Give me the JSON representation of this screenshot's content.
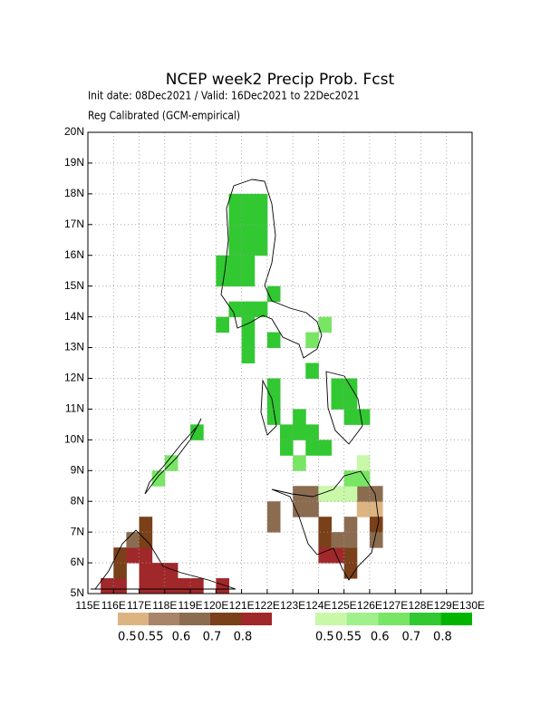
{
  "map": {
    "title": "NCEP week2 Precip Prob. Fcst",
    "subtitle": "Init date: 08Dec2021 / Valid: 16Dec2021 to 22Dec2021",
    "note": "Reg Calibrated (GCM-empirical)",
    "xlim": [
      115,
      130
    ],
    "ylim": [
      5,
      20
    ],
    "xticks": [
      {
        "value": 115,
        "label": "115E"
      },
      {
        "value": 116,
        "label": "116E"
      },
      {
        "value": 117,
        "label": "117E"
      },
      {
        "value": 118,
        "label": "118E"
      },
      {
        "value": 119,
        "label": "119E"
      },
      {
        "value": 120,
        "label": "120E"
      },
      {
        "value": 121,
        "label": "121E"
      },
      {
        "value": 122,
        "label": "122E"
      },
      {
        "value": 123,
        "label": "123E"
      },
      {
        "value": 124,
        "label": "124E"
      },
      {
        "value": 125,
        "label": "125E"
      },
      {
        "value": 126,
        "label": "126E"
      },
      {
        "value": 127,
        "label": "127E"
      },
      {
        "value": 128,
        "label": "128E"
      },
      {
        "value": 129,
        "label": "129E"
      },
      {
        "value": 130,
        "label": "130E"
      }
    ],
    "yticks": [
      {
        "value": 5,
        "label": "5N"
      },
      {
        "value": 6,
        "label": "6N"
      },
      {
        "value": 7,
        "label": "7N"
      },
      {
        "value": 8,
        "label": "8N"
      },
      {
        "value": 9,
        "label": "9N"
      },
      {
        "value": 10,
        "label": "10N"
      },
      {
        "value": 11,
        "label": "11N"
      },
      {
        "value": 12,
        "label": "12N"
      },
      {
        "value": 13,
        "label": "13N"
      },
      {
        "value": 14,
        "label": "14N"
      },
      {
        "value": 15,
        "label": "15N"
      },
      {
        "value": 16,
        "label": "16N"
      },
      {
        "value": 17,
        "label": "17N"
      },
      {
        "value": 18,
        "label": "18N"
      },
      {
        "value": 19,
        "label": "19N"
      },
      {
        "value": 20,
        "label": "20N"
      }
    ],
    "grid": true,
    "dry_legend": {
      "labels": [
        0.5,
        0.55,
        0.6,
        0.7,
        0.8
      ],
      "colors": [
        "#dcb482",
        "#a88468",
        "#8c6c50",
        "#7a4019",
        "#a0282a"
      ]
    },
    "wet_legend": {
      "labels": [
        0.5,
        0.55,
        0.6,
        0.7,
        0.8
      ],
      "colors": [
        "#c8f8a8",
        "#a0f08c",
        "#78e664",
        "#32c832",
        "#00b400"
      ]
    },
    "dry_cells": [
      [
        122,
        7,
        2
      ],
      [
        122,
        7.5,
        2
      ],
      [
        123,
        7.5,
        2
      ],
      [
        123,
        8,
        2
      ],
      [
        123.5,
        7.5,
        2
      ],
      [
        123.5,
        8,
        2
      ],
      [
        124,
        7,
        3
      ],
      [
        124,
        6.5,
        3
      ],
      [
        124,
        6,
        4
      ],
      [
        124.5,
        6,
        4
      ],
      [
        124.5,
        6.5,
        2
      ],
      [
        125,
        5.5,
        3
      ],
      [
        125,
        6,
        3
      ],
      [
        125,
        6.5,
        2
      ],
      [
        125,
        7,
        2
      ],
      [
        125.5,
        7.5,
        0
      ],
      [
        126,
        7.5,
        0
      ],
      [
        125.5,
        8,
        2
      ],
      [
        126,
        8,
        2
      ],
      [
        126,
        6.5,
        2
      ],
      [
        126,
        7,
        3
      ],
      [
        115.5,
        5,
        4
      ],
      [
        116,
        5,
        4
      ],
      [
        116,
        5.5,
        3
      ],
      [
        116,
        6,
        3
      ],
      [
        116.5,
        6,
        4
      ],
      [
        116.5,
        6.5,
        2
      ],
      [
        117,
        5,
        4
      ],
      [
        117,
        5.5,
        4
      ],
      [
        117,
        6,
        4
      ],
      [
        117,
        6.5,
        3
      ],
      [
        117,
        7,
        3
      ],
      [
        117.5,
        5,
        4
      ],
      [
        117.5,
        5.5,
        4
      ],
      [
        118,
        5,
        4
      ],
      [
        118,
        5.5,
        4
      ],
      [
        118.5,
        5,
        4
      ],
      [
        119,
        5,
        4
      ],
      [
        120,
        5,
        4
      ]
    ],
    "wet_cells": [
      [
        120.5,
        16,
        3
      ],
      [
        121,
        16,
        3
      ],
      [
        121.5,
        16,
        3
      ],
      [
        120.5,
        16.5,
        3
      ],
      [
        121,
        16.5,
        3
      ],
      [
        121.5,
        16.5,
        3
      ],
      [
        120.5,
        17,
        3
      ],
      [
        121,
        17,
        3
      ],
      [
        121.5,
        17,
        3
      ],
      [
        120.5,
        17.5,
        3
      ],
      [
        121,
        17.5,
        3
      ],
      [
        121.5,
        17.5,
        3
      ],
      [
        120,
        15,
        3
      ],
      [
        120.5,
        15,
        3
      ],
      [
        121,
        15,
        3
      ],
      [
        120,
        15.5,
        3
      ],
      [
        120.5,
        15.5,
        3
      ],
      [
        121,
        15.5,
        3
      ],
      [
        120.5,
        14,
        3
      ],
      [
        121,
        14,
        3
      ],
      [
        121.5,
        14,
        3
      ],
      [
        122,
        14.5,
        3
      ],
      [
        120,
        13.5,
        3
      ],
      [
        121,
        13.5,
        3
      ],
      [
        121,
        13,
        3
      ],
      [
        122,
        13,
        3
      ],
      [
        121,
        12.5,
        3
      ],
      [
        122,
        10.5,
        3
      ],
      [
        122,
        11,
        3
      ],
      [
        122,
        11.5,
        3
      ],
      [
        122.5,
        10,
        3
      ],
      [
        123,
        10.5,
        3
      ],
      [
        123,
        10,
        3
      ],
      [
        122.5,
        9.5,
        3
      ],
      [
        123.5,
        9.5,
        3
      ],
      [
        124.5,
        11.5,
        3
      ],
      [
        125,
        11.5,
        3
      ],
      [
        124.5,
        11,
        3
      ],
      [
        125,
        11,
        3
      ],
      [
        125,
        10.5,
        3
      ],
      [
        125.5,
        10.5,
        3
      ],
      [
        123.5,
        13,
        2
      ],
      [
        124,
        13.5,
        2
      ],
      [
        123.5,
        12,
        3
      ],
      [
        123.5,
        10,
        3
      ],
      [
        124,
        9.5,
        3
      ],
      [
        124,
        8,
        0
      ],
      [
        124.5,
        8,
        0
      ],
      [
        125,
        8,
        0
      ],
      [
        125,
        8.5,
        2
      ],
      [
        125.5,
        8.5,
        2
      ],
      [
        125.5,
        9,
        0
      ],
      [
        118,
        9,
        2
      ],
      [
        117.5,
        8.5,
        2
      ],
      [
        119,
        10,
        3
      ],
      [
        123,
        9,
        2
      ]
    ]
  }
}
